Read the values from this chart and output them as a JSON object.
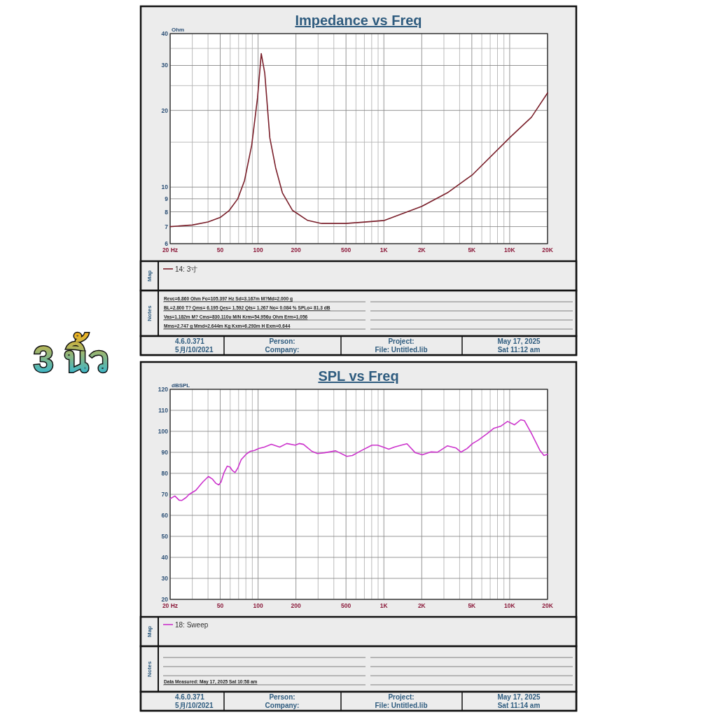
{
  "chart_data": [
    {
      "type": "line",
      "title": "Impedance vs Freq",
      "ylabel": "Ohm",
      "log": "xy",
      "grid": true,
      "legend": "bottom",
      "marker": "none",
      "line_style": "solid",
      "xlim": [
        20,
        20000
      ],
      "ylim": [
        6,
        40
      ],
      "xticks": [
        {
          "value": 20,
          "label": "20  Hz"
        },
        {
          "value": 30,
          "label": null
        },
        {
          "value": 40,
          "label": null
        },
        {
          "value": 50,
          "label": "50"
        },
        {
          "value": 60,
          "label": null
        },
        {
          "value": 70,
          "label": null
        },
        {
          "value": 80,
          "label": null
        },
        {
          "value": 90,
          "label": null
        },
        {
          "value": 100,
          "label": "100"
        },
        {
          "value": 200,
          "label": "200"
        },
        {
          "value": 300,
          "label": null
        },
        {
          "value": 400,
          "label": null
        },
        {
          "value": 500,
          "label": "500"
        },
        {
          "value": 600,
          "label": null
        },
        {
          "value": 700,
          "label": null
        },
        {
          "value": 800,
          "label": null
        },
        {
          "value": 900,
          "label": null
        },
        {
          "value": 1000,
          "label": "1K"
        },
        {
          "value": 2000,
          "label": "2K"
        },
        {
          "value": 3000,
          "label": null
        },
        {
          "value": 4000,
          "label": null
        },
        {
          "value": 5000,
          "label": "5K"
        },
        {
          "value": 6000,
          "label": null
        },
        {
          "value": 7000,
          "label": null
        },
        {
          "value": 8000,
          "label": null
        },
        {
          "value": 9000,
          "label": null
        },
        {
          "value": 10000,
          "label": "10K"
        },
        {
          "value": 20000,
          "label": "20K"
        }
      ],
      "yticks": [
        6,
        7,
        8,
        9,
        10,
        {
          "value": 15,
          "label": null
        },
        20,
        {
          "value": 25,
          "label": null
        },
        30,
        {
          "value": 35,
          "label": null
        },
        40
      ],
      "series": [
        {
          "name": "14: 3寸",
          "color": "#7a1f2a",
          "x": [
            20,
            30,
            40,
            50,
            59,
            69,
            78,
            89,
            99,
            106,
            113,
            124,
            138,
            156,
            188,
            248,
            320,
            500,
            1010,
            2000,
            3200,
            5080,
            10100,
            14900,
            20000
          ],
          "values": [
            7.0,
            7.1,
            7.3,
            7.6,
            8.1,
            9.0,
            10.6,
            14.6,
            22.4,
            33.4,
            28.0,
            15.6,
            11.9,
            9.5,
            8.1,
            7.4,
            7.2,
            7.2,
            7.4,
            8.4,
            9.5,
            11.2,
            15.7,
            18.8,
            23.4
          ]
        }
      ],
      "annotations": [
        "3 นิ้ว",
        "Map",
        "Notes",
        "Revc=6.860 Ohm  Fo=105.397 Hz  Sd=3.167m M?Md=2.000 g",
        "BL=2.800 T? Qms= 6.195  Qes= 1.592  Qts= 1.267  No= 0.084 %  SPLo= 81.3 dB",
        "Vas=1.182m M? Cms=830.110u M/N  Krm=54.956u Ohm  Erm=1.056",
        "Mms=2.747 g  Mmd=2.644m Kg  Kxm=6.293m H  Exm=0.644",
        "4.6.0.371",
        "5月/10/2021",
        "Person:",
        "Company:",
        "Project:",
        "File: Untitled.lib",
        "May 17, 2025",
        "Sat 11:12 am"
      ]
    },
    {
      "type": "line",
      "title": "SPL vs Freq",
      "ylabel": "dBSPL",
      "log": "x",
      "grid": true,
      "legend": "bottom",
      "marker": "none",
      "line_style": "solid",
      "xlim": [
        20,
        20000
      ],
      "ylim": [
        20,
        120
      ],
      "xticks": [
        {
          "value": 20,
          "label": "20  Hz"
        },
        {
          "value": 30,
          "label": null
        },
        {
          "value": 40,
          "label": null
        },
        {
          "value": 50,
          "label": "50"
        },
        {
          "value": 60,
          "label": null
        },
        {
          "value": 70,
          "label": null
        },
        {
          "value": 80,
          "label": null
        },
        {
          "value": 90,
          "label": null
        },
        {
          "value": 100,
          "label": "100"
        },
        {
          "value": 200,
          "label": "200"
        },
        {
          "value": 300,
          "label": null
        },
        {
          "value": 400,
          "label": null
        },
        {
          "value": 500,
          "label": "500"
        },
        {
          "value": 600,
          "label": null
        },
        {
          "value": 700,
          "label": null
        },
        {
          "value": 800,
          "label": null
        },
        {
          "value": 900,
          "label": null
        },
        {
          "value": 1000,
          "label": "1K"
        },
        {
          "value": 2000,
          "label": "2K"
        },
        {
          "value": 3000,
          "label": null
        },
        {
          "value": 4000,
          "label": null
        },
        {
          "value": 5000,
          "label": "5K"
        },
        {
          "value": 6000,
          "label": null
        },
        {
          "value": 7000,
          "label": null
        },
        {
          "value": 8000,
          "label": null
        },
        {
          "value": 9000,
          "label": null
        },
        {
          "value": 10000,
          "label": "10K"
        },
        {
          "value": 20000,
          "label": "20K"
        }
      ],
      "yticks": [
        20,
        30,
        40,
        50,
        60,
        70,
        80,
        90,
        100,
        110,
        120
      ],
      "series": [
        {
          "name": "18: Sweep",
          "color": "#cc33cc",
          "x": [
            20,
            21.8,
            23.6,
            24.8,
            26.8,
            28.2,
            32.0,
            36.4,
            40.3,
            43.5,
            46.3,
            48.7,
            50.8,
            53.4,
            56.8,
            59.8,
            62.3,
            65.6,
            69.0,
            73.4,
            80.4,
            86.8,
            93.8,
            101.3,
            112.2,
            127.5,
            148.6,
            169,
            197,
            212.6,
            229.6,
            248,
            267.8,
            296.6,
            337,
            414,
            508,
            562,
            656,
            804,
            891,
            987,
            1093,
            1211,
            1377,
            1525,
            1777,
            2020,
            2356,
            2677,
            2891,
            3202,
            3734,
            4094,
            4582,
            5076,
            5623,
            6558,
            7453,
            8465,
            9619,
            10930,
            12240,
            13080,
            14860,
            17330,
            18720,
            20000
          ],
          "values": [
            67.9,
            69.2,
            67.2,
            67.1,
            68.5,
            69.9,
            71.9,
            75.9,
            78.5,
            77.2,
            75.2,
            74.5,
            75.9,
            80.1,
            83.4,
            83.0,
            81.4,
            80.4,
            82.5,
            86.5,
            89.1,
            90.5,
            90.9,
            91.8,
            92.5,
            93.8,
            92.5,
            94.2,
            93.4,
            94.2,
            93.8,
            92.1,
            90.5,
            89.4,
            89.8,
            90.7,
            88.1,
            88.5,
            90.7,
            93.4,
            93.4,
            92.5,
            91.5,
            92.5,
            93.4,
            94.1,
            89.8,
            88.8,
            90.2,
            90.1,
            91.4,
            93.1,
            92.1,
            90.1,
            91.8,
            94.2,
            95.8,
            98.7,
            101.4,
            102.4,
            104.7,
            103.1,
            105.5,
            105.1,
            99.1,
            91.1,
            88.5,
            89.1
          ]
        }
      ],
      "annotations": [
        "Map",
        "Notes",
        "Data Measured: May 17, 2025  Sat 10:58 am",
        "4.6.0.371",
        "5月/10/2021",
        "Person:",
        "Company:",
        "Project:",
        "File: Untitled.lib",
        "May 17, 2025",
        "Sat 11:14 am"
      ]
    }
  ]
}
